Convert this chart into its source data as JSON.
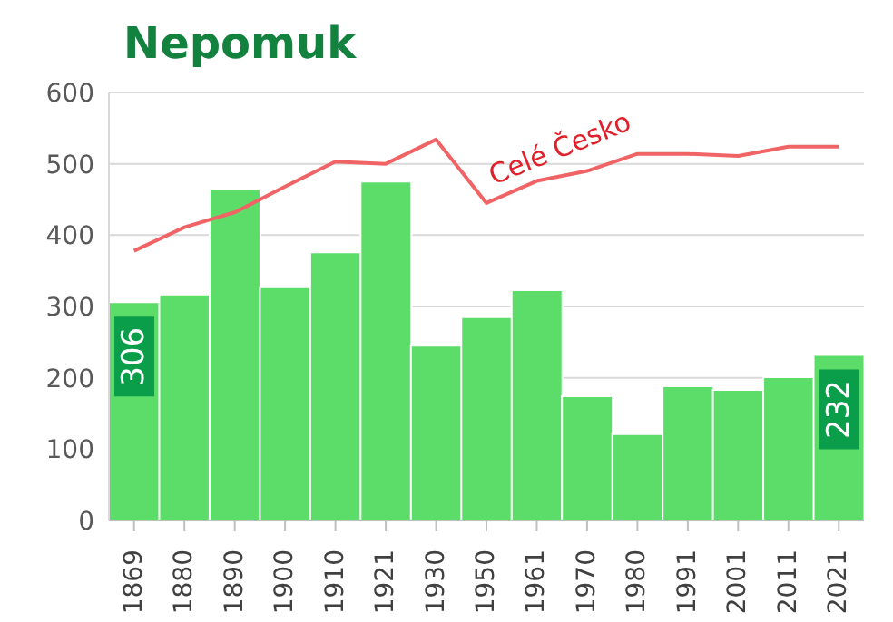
{
  "chart_data": {
    "type": "bar",
    "title": "Nepomuk",
    "categories": [
      "1869",
      "1880",
      "1890",
      "1900",
      "1910",
      "1921",
      "1930",
      "1950",
      "1961",
      "1970",
      "1980",
      "1991",
      "2001",
      "2011",
      "2021"
    ],
    "series": [
      {
        "color": "#5cdc68",
        "values": [
          306,
          317,
          465,
          327,
          376,
          475,
          245,
          285,
          323,
          174,
          121,
          188,
          183,
          201,
          232
        ],
        "value_labels": [
          "306",
          null,
          null,
          null,
          null,
          null,
          null,
          null,
          null,
          null,
          null,
          null,
          null,
          null,
          "232"
        ]
      },
      {
        "type": "line",
        "name": "Celé Česko",
        "color": "#f06466",
        "values": [
          378,
          411,
          432,
          468,
          503,
          500,
          534,
          445,
          476,
          490,
          514,
          514,
          511,
          524,
          524
        ]
      }
    ],
    "ylim": [
      0,
      600
    ],
    "yticks": [
      0,
      100,
      200,
      300,
      400,
      500,
      600
    ],
    "grid": "y",
    "legend": false,
    "marker": "none"
  }
}
